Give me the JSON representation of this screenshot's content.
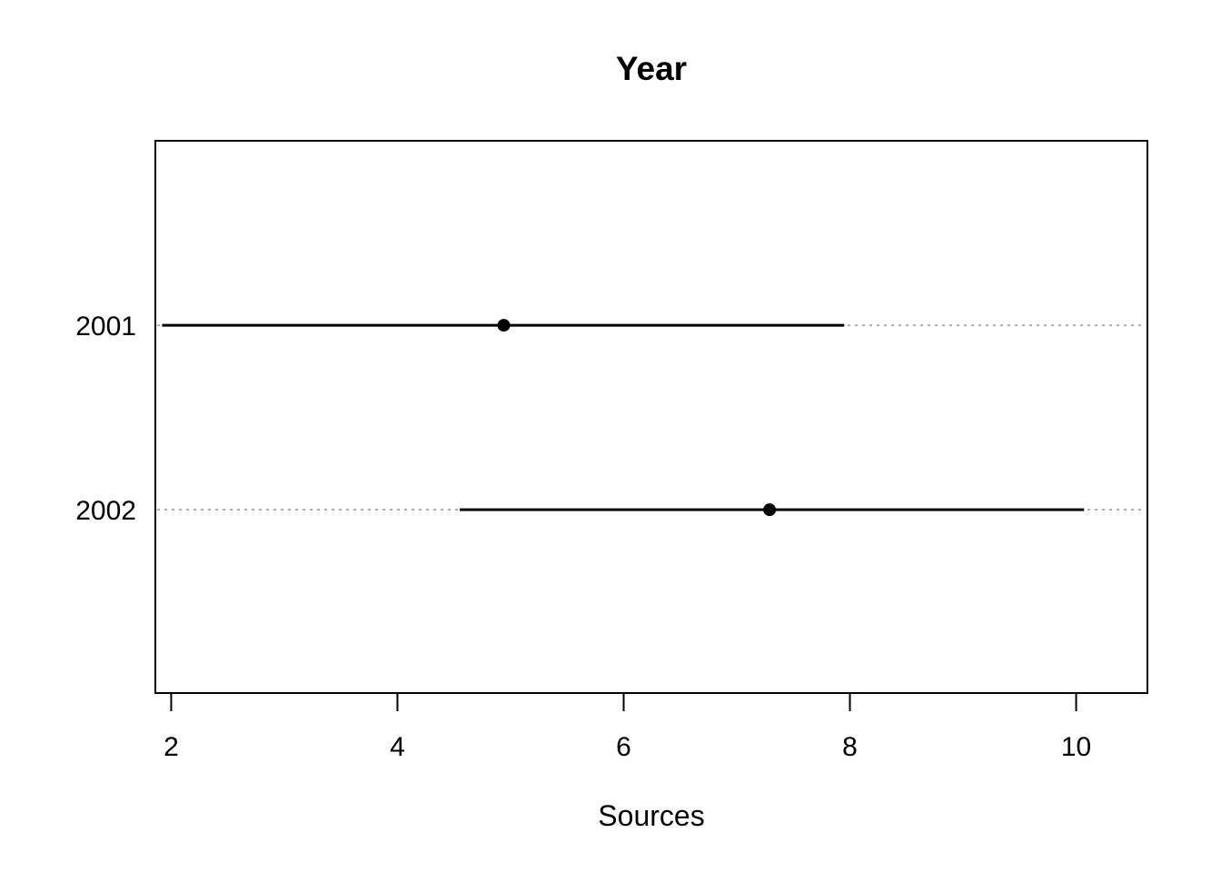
{
  "chart_data": {
    "type": "scatter",
    "subtype": "dotchart-with-interval-lines",
    "title": "Year",
    "xlabel": "Sources",
    "ylabel": "",
    "xlim": [
      1.86,
      10.63
    ],
    "xtick_values": [
      2,
      4,
      6,
      8,
      10
    ],
    "xtick_labels": [
      "2",
      "4",
      "6",
      "8",
      "10"
    ],
    "categories": [
      "2001",
      "2002"
    ],
    "series": [
      {
        "name": "2001",
        "center": 4.94,
        "lower": 1.92,
        "upper": 7.95
      },
      {
        "name": "2002",
        "center": 7.29,
        "lower": 4.55,
        "upper": 10.07
      }
    ],
    "row_fractions_from_top": [
      0.334,
      0.668
    ],
    "grid": "full-width dotted line per category row",
    "legend": "none",
    "colors": {
      "point": "#000000",
      "interval_line": "#000000",
      "grid_dotted": "#ababab",
      "box": "#000000",
      "text": "#000000",
      "background": "#ffffff"
    }
  }
}
